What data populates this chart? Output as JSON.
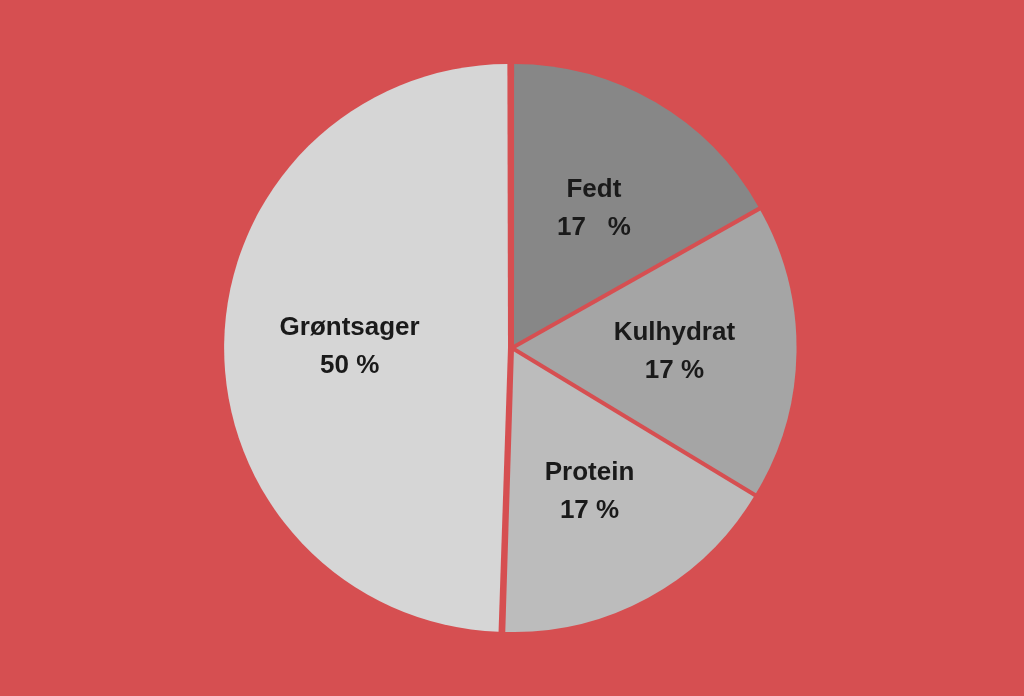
{
  "chart_data": {
    "type": "pie",
    "categories": [
      "Fedt",
      "Kulhydrat",
      "Protein",
      "Grøntsager"
    ],
    "values": [
      17,
      17,
      17,
      50
    ],
    "colors": [
      "#878787",
      "#a5a5a5",
      "#bcbcbc",
      "#d6d6d6"
    ],
    "value_labels": [
      "17   %",
      "17 %",
      "17 %",
      "50 %"
    ],
    "legend": false
  }
}
